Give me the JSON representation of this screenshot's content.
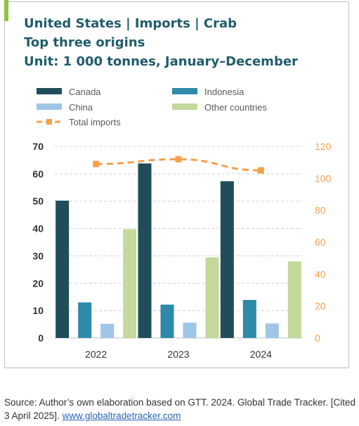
{
  "chart_data": {
    "type": "bar",
    "title": "United States | Imports | Crab",
    "subtitle": "Top three origins",
    "unit_line": "Unit: 1 000 tonnes, January–December",
    "categories": [
      "2022",
      "2023",
      "2024"
    ],
    "series": [
      {
        "name": "Canada",
        "values": [
          50.2,
          63.8,
          57.3
        ],
        "color": "#1f4e5a",
        "axis": "left"
      },
      {
        "name": "Indonesia",
        "values": [
          13.0,
          12.2,
          13.9
        ],
        "color": "#2e8aa8",
        "axis": "left"
      },
      {
        "name": "China",
        "values": [
          5.2,
          5.6,
          5.3
        ],
        "color": "#9fc5e8",
        "axis": "left"
      },
      {
        "name": "Other countries",
        "values": [
          39.7,
          29.5,
          28.0
        ],
        "color": "#c4d89b",
        "axis": "left"
      }
    ],
    "line_series": {
      "name": "Total imports",
      "values": [
        109,
        112,
        105
      ],
      "color": "#f5a04a",
      "axis": "right"
    },
    "legend_order": [
      "Canada",
      "Indonesia",
      "China",
      "Other countries",
      "Total imports"
    ],
    "y_left": {
      "ylim": [
        0,
        70
      ],
      "ticks": [
        "0",
        "10",
        "20",
        "30",
        "40",
        "50",
        "60",
        "70"
      ]
    },
    "y_right": {
      "ylim": [
        0,
        120
      ],
      "ticks": [
        "0",
        "20",
        "40",
        "60",
        "80",
        "100",
        "120"
      ],
      "color": "#f5a04a"
    },
    "grid": true,
    "legend_position": "top"
  },
  "source": {
    "text": "Source: Author’s own elaboration based on GTT. 2024. Global Trade Tracker. [Cited 3 April 2025].",
    "link_text": "www.globaltradetracker.com"
  }
}
